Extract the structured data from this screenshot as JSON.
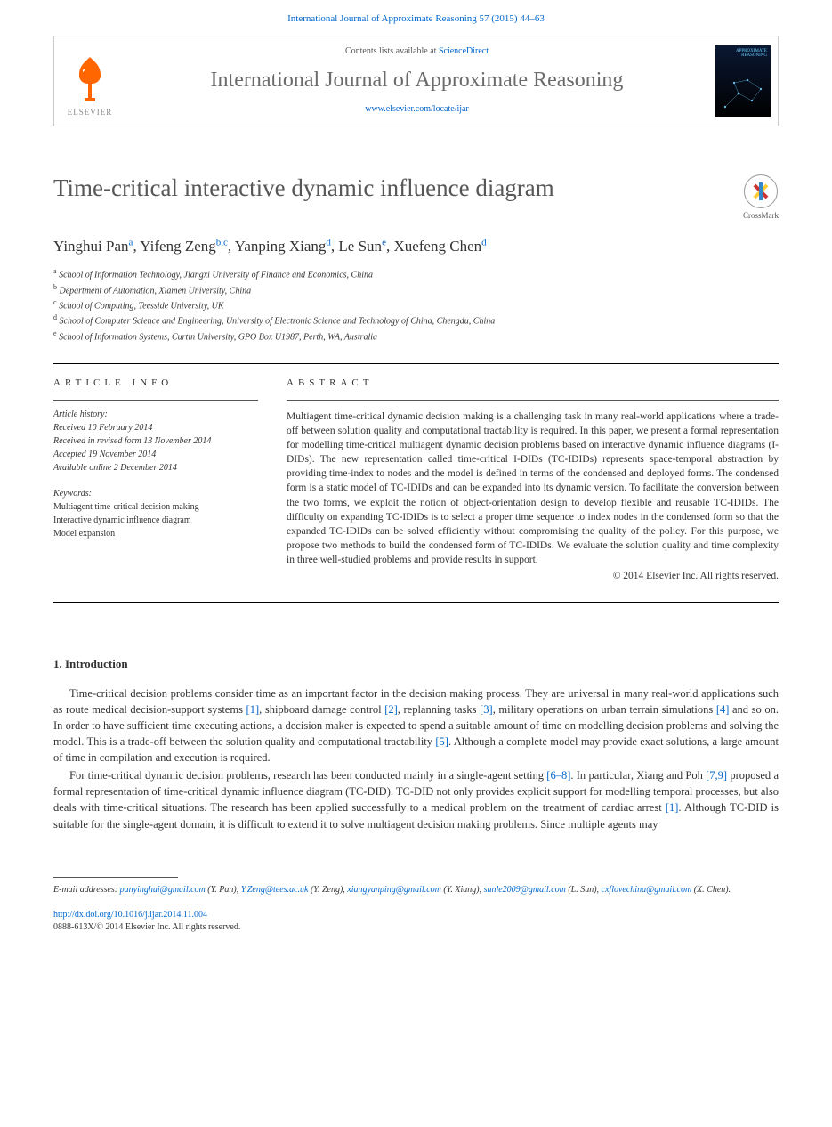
{
  "header": {
    "citation": "International Journal of Approximate Reasoning 57 (2015) 44–63",
    "contents_prefix": "Contents lists available at ",
    "sciencedirect": "ScienceDirect",
    "journal_name": "International Journal of Approximate Reasoning",
    "journal_link": "www.elsevier.com/locate/ijar",
    "elsevier_label": "ELSEVIER",
    "cover_text": "APPROXIMATE\nREASONING",
    "crossmark_label": "CrossMark"
  },
  "article": {
    "title": "Time-critical interactive dynamic influence diagram",
    "authors_html": "Yinghui Pan|a|, Yifeng Zeng|b,c|, Yanping Xiang|d|, Le Sun|e|, Xuefeng Chen|d|",
    "affiliations": [
      {
        "sup": "a",
        "text": "School of Information Technology, Jiangxi University of Finance and Economics, China"
      },
      {
        "sup": "b",
        "text": "Department of Automation, Xiamen University, China"
      },
      {
        "sup": "c",
        "text": "School of Computing, Teesside University, UK"
      },
      {
        "sup": "d",
        "text": "School of Computer Science and Engineering, University of Electronic Science and Technology of China, Chengdu, China"
      },
      {
        "sup": "e",
        "text": "School of Information Systems, Curtin University, GPO Box U1987, Perth, WA, Australia"
      }
    ]
  },
  "info": {
    "header": "article info",
    "history_label": "Article history:",
    "history": [
      "Received 10 February 2014",
      "Received in revised form 13 November 2014",
      "Accepted 19 November 2014",
      "Available online 2 December 2014"
    ],
    "keywords_label": "Keywords:",
    "keywords": [
      "Multiagent time-critical decision making",
      "Interactive dynamic influence diagram",
      "Model expansion"
    ]
  },
  "abstract": {
    "header": "abstract",
    "text": "Multiagent time-critical dynamic decision making is a challenging task in many real-world applications where a trade-off between solution quality and computational tractability is required. In this paper, we present a formal representation for modelling time-critical multiagent dynamic decision problems based on interactive dynamic influence diagrams (I-DIDs). The new representation called time-critical I-DIDs (TC-IDIDs) represents space-temporal abstraction by providing time-index to nodes and the model is defined in terms of the condensed and deployed forms. The condensed form is a static model of TC-IDIDs and can be expanded into its dynamic version. To facilitate the conversion between the two forms, we exploit the notion of object-orientation design to develop flexible and reusable TC-IDIDs. The difficulty on expanding TC-IDIDs is to select a proper time sequence to index nodes in the condensed form so that the expanded TC-IDIDs can be solved efficiently without compromising the quality of the policy. For this purpose, we propose two methods to build the condensed form of TC-IDIDs. We evaluate the solution quality and time complexity in three well-studied problems and provide results in support.",
    "copyright": "© 2014 Elsevier Inc. All rights reserved."
  },
  "body": {
    "section_number": "1.",
    "section_title": "Introduction",
    "paragraphs": [
      "Time-critical decision problems consider time as an important factor in the decision making process. They are universal in many real-world applications such as route medical decision-support systems [1], shipboard damage control [2], replanning tasks [3], military operations on urban terrain simulations [4] and so on. In order to have sufficient time executing actions, a decision maker is expected to spend a suitable amount of time on modelling decision problems and solving the model. This is a trade-off between the solution quality and computational tractability [5]. Although a complete model may provide exact solutions, a large amount of time in compilation and execution is required.",
      "For time-critical dynamic decision problems, research has been conducted mainly in a single-agent setting [6–8]. In particular, Xiang and Poh [7,9] proposed a formal representation of time-critical dynamic influence diagram (TC-DID). TC-DID not only provides explicit support for modelling temporal processes, but also deals with time-critical situations. The research has been applied successfully to a medical problem on the treatment of cardiac arrest [1]. Although TC-DID is suitable for the single-agent domain, it is difficult to extend it to solve multiagent decision making problems. Since multiple agents may"
    ],
    "ref_patterns": [
      "[1]",
      "[2]",
      "[3]",
      "[4]",
      "[5]",
      "[6–8]",
      "[7,9]"
    ]
  },
  "footer": {
    "email_label": "E-mail addresses:",
    "emails": [
      {
        "addr": "panyinghui@gmail.com",
        "who": "(Y. Pan)"
      },
      {
        "addr": "Y.Zeng@tees.ac.uk",
        "who": "(Y. Zeng)"
      },
      {
        "addr": "xiangyanping@gmail.com",
        "who": "(Y. Xiang)"
      },
      {
        "addr": "sunle2009@gmail.com",
        "who": "(L. Sun)"
      },
      {
        "addr": "cxflovechina@gmail.com",
        "who": "(X. Chen)"
      }
    ],
    "doi": "http://dx.doi.org/10.1016/j.ijar.2014.11.004",
    "issn_line": "0888-613X/© 2014 Elsevier Inc. All rights reserved."
  },
  "colors": {
    "link": "#0066cc",
    "elsevier_orange": "#ff6600",
    "title_gray": "#575757"
  }
}
